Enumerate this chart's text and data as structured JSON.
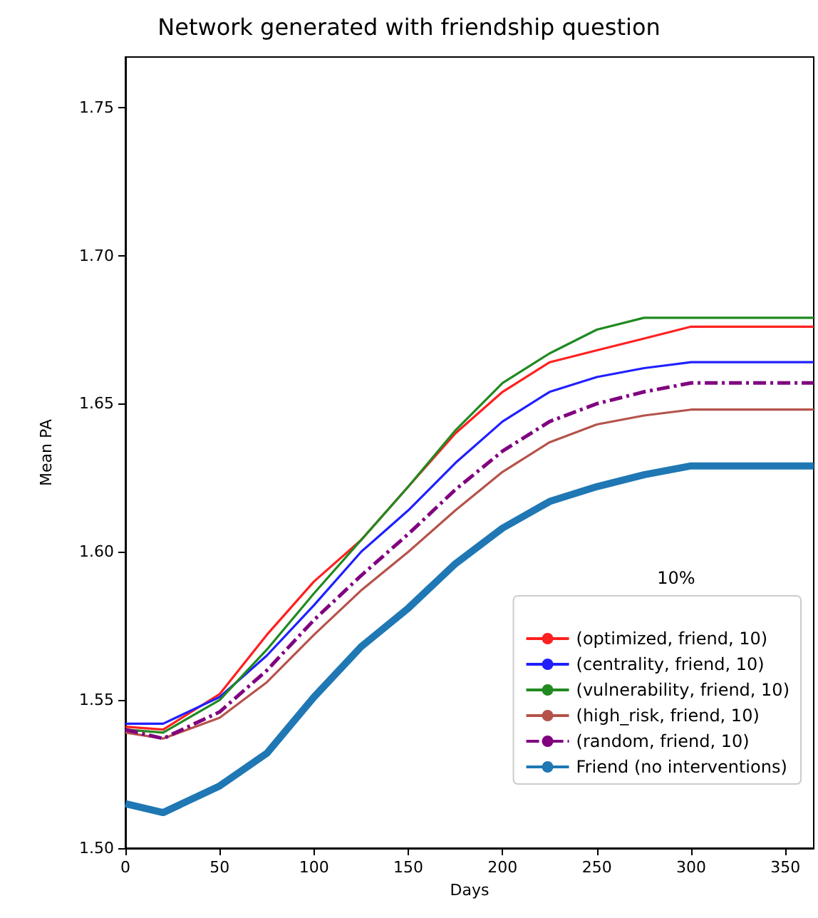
{
  "chart_data": {
    "type": "line",
    "title": "Network generated with friendship question",
    "xlabel": "Days",
    "ylabel": "Mean PA",
    "legend_title": "10%",
    "legend": "bottom right",
    "grid": false,
    "marker": "none",
    "x": [
      0,
      20,
      50,
      75,
      100,
      125,
      150,
      175,
      200,
      225,
      250,
      275,
      300,
      365
    ],
    "xlim": [
      0,
      365
    ],
    "xticks": [
      0,
      50,
      100,
      150,
      200,
      250,
      300,
      350
    ],
    "ylim": [
      1.5,
      1.767
    ],
    "yticks": [
      {
        "value": 1.5,
        "label": "1.50"
      },
      {
        "value": 1.55,
        "label": "1.55"
      },
      {
        "value": 1.6,
        "label": "1.60"
      },
      {
        "value": 1.65,
        "label": "1.65"
      },
      {
        "value": 1.7,
        "label": "1.70"
      },
      {
        "value": 1.75,
        "label": "1.75"
      }
    ],
    "series": [
      {
        "name": "(optimized, friend, 10)",
        "color": "#ff2020",
        "line_style": "solid",
        "values": [
          1.541,
          1.54,
          1.552,
          1.572,
          1.59,
          1.604,
          1.622,
          1.64,
          1.654,
          1.664,
          1.668,
          1.672,
          1.676,
          1.676
        ]
      },
      {
        "name": "(centrality, friend, 10)",
        "color": "#2020ff",
        "line_style": "solid",
        "values": [
          1.542,
          1.542,
          1.551,
          1.565,
          1.582,
          1.6,
          1.614,
          1.63,
          1.644,
          1.654,
          1.659,
          1.662,
          1.664,
          1.664
        ]
      },
      {
        "name": "(vulnerability, friend, 10)",
        "color": "#208a20",
        "line_style": "solid",
        "values": [
          1.54,
          1.539,
          1.55,
          1.567,
          1.586,
          1.604,
          1.622,
          1.641,
          1.657,
          1.667,
          1.675,
          1.679,
          1.679,
          1.679
        ]
      },
      {
        "name": "(high_risk, friend, 10)",
        "color": "#b5534b",
        "line_style": "solid",
        "values": [
          1.539,
          1.537,
          1.544,
          1.556,
          1.572,
          1.587,
          1.6,
          1.614,
          1.627,
          1.637,
          1.643,
          1.646,
          1.648,
          1.648
        ]
      },
      {
        "name": "(random, friend, 10)",
        "color": "#800080",
        "line_style": "dashed",
        "values": [
          1.54,
          1.537,
          1.546,
          1.56,
          1.577,
          1.592,
          1.606,
          1.621,
          1.634,
          1.644,
          1.65,
          1.654,
          1.657,
          1.657
        ]
      },
      {
        "name": "Friend (no interventions)",
        "color": "#1f77b4",
        "line_style": "solid",
        "values": [
          1.515,
          1.512,
          1.521,
          1.532,
          1.551,
          1.568,
          1.581,
          1.596,
          1.608,
          1.617,
          1.622,
          1.626,
          1.629,
          1.629
        ]
      }
    ]
  }
}
